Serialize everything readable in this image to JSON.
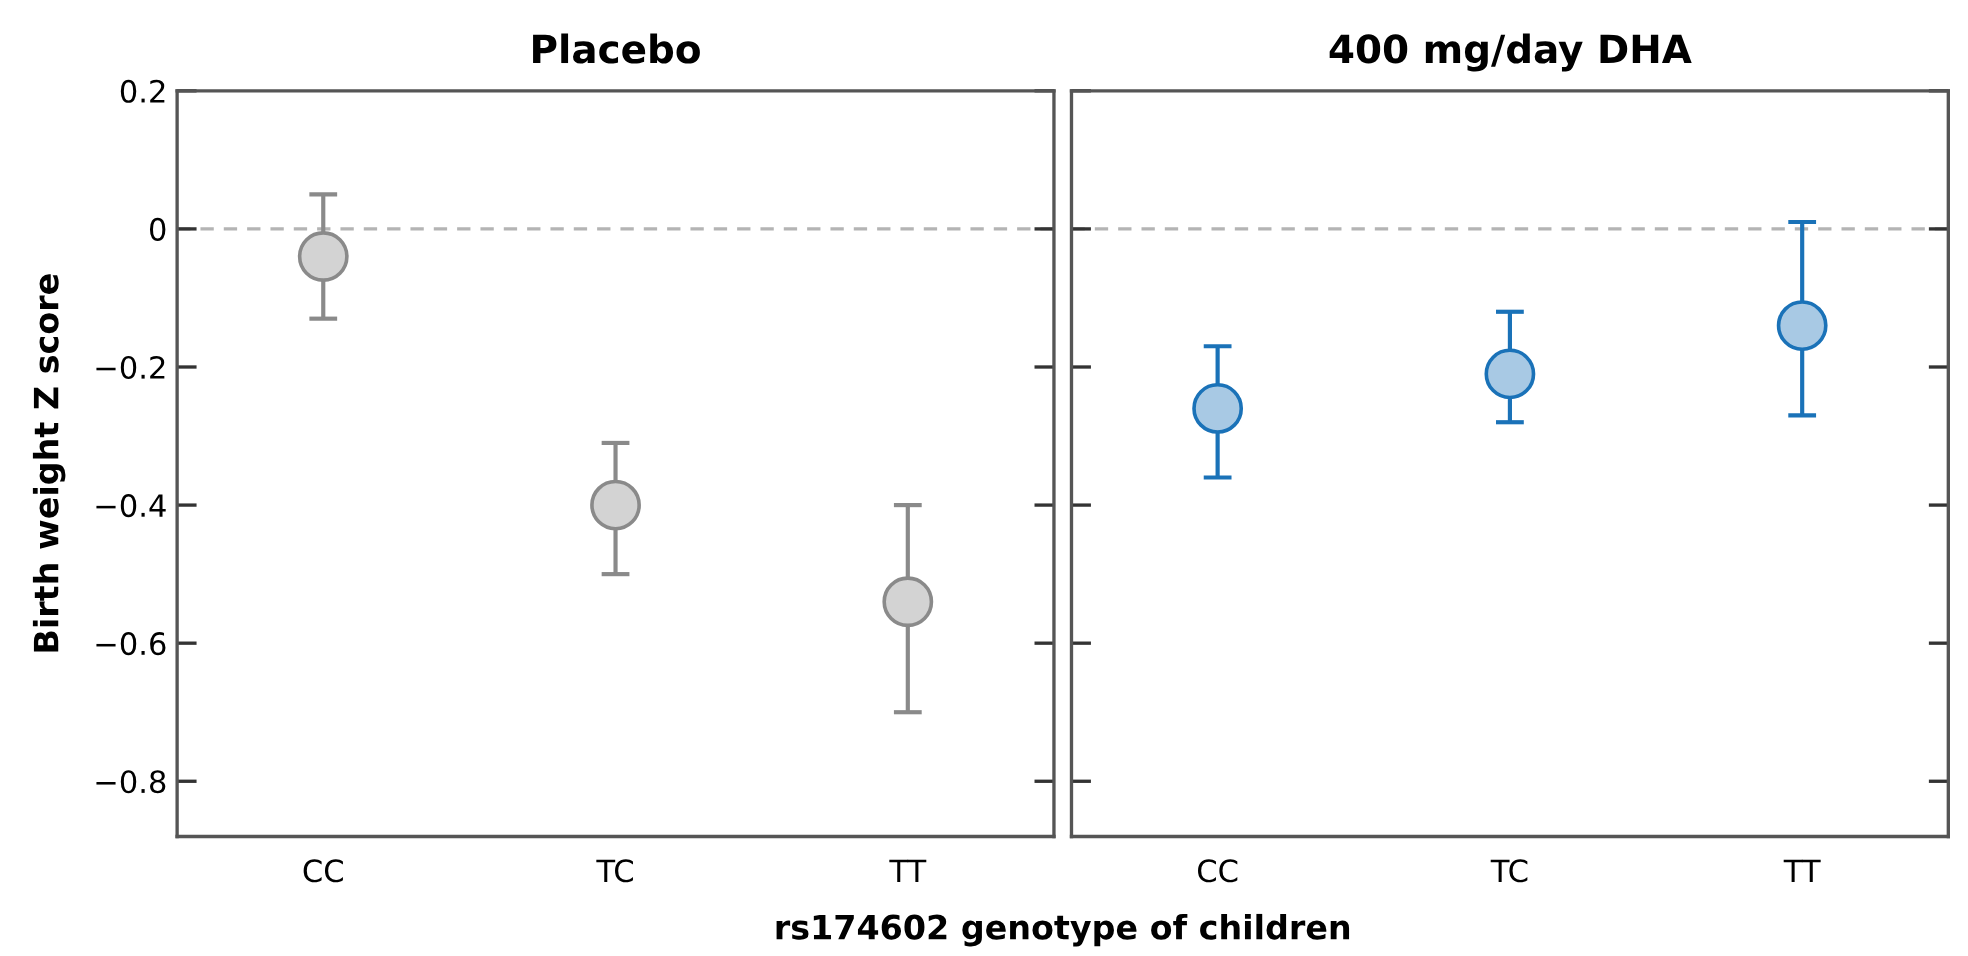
{
  "chart_data": [
    {
      "type": "scatter",
      "title": "Placebo",
      "ylabel": "Birth weight Z score",
      "xlabel": "rs174602 genotype of children",
      "categories": [
        "CC",
        "TC",
        "TT"
      ],
      "series": [
        {
          "color": "#8a8a8a",
          "values": [
            -0.04,
            -0.4,
            -0.54
          ],
          "errors": [
            [
              -0.13,
              0.05
            ],
            [
              -0.5,
              -0.31
            ],
            [
              -0.7,
              -0.4
            ]
          ]
        }
      ],
      "marker": "circle",
      "ylim": [
        -0.88,
        0.2
      ],
      "yticks": [
        {
          "value": 0.2,
          "label": "0.2"
        },
        {
          "value": 0,
          "label": "0"
        },
        {
          "value": -0.2,
          "label": "−0.2"
        },
        {
          "value": -0.4,
          "label": "−0.4"
        },
        {
          "value": -0.6,
          "label": "−0.6"
        },
        {
          "value": -0.8,
          "label": "−0.8"
        }
      ],
      "ref_lines": [
        {
          "axis": "y",
          "value": 0,
          "color": "#b4b4b4",
          "line_style": "dashed"
        }
      ],
      "grid": false,
      "legend": false
    },
    {
      "type": "scatter",
      "title": "400 mg/day DHA",
      "categories": [
        "CC",
        "TC",
        "TT"
      ],
      "series": [
        {
          "color": "#1a72b8",
          "values": [
            -0.26,
            -0.21,
            -0.14
          ],
          "errors": [
            [
              -0.36,
              -0.17
            ],
            [
              -0.28,
              -0.12
            ],
            [
              -0.27,
              0.01
            ]
          ]
        }
      ],
      "marker": "circle",
      "ylim": [
        -0.88,
        0.2
      ],
      "yticks": [
        {
          "value": 0.2,
          "label": null
        },
        {
          "value": 0,
          "label": null
        },
        {
          "value": -0.2,
          "label": null
        },
        {
          "value": -0.4,
          "label": null
        },
        {
          "value": -0.6,
          "label": null
        },
        {
          "value": -0.8,
          "label": null
        }
      ],
      "tick_labels": "x",
      "ref_lines": [
        {
          "axis": "y",
          "value": 0,
          "color": "#b4b4b4",
          "line_style": "dashed"
        }
      ],
      "grid": false,
      "legend": false
    }
  ]
}
